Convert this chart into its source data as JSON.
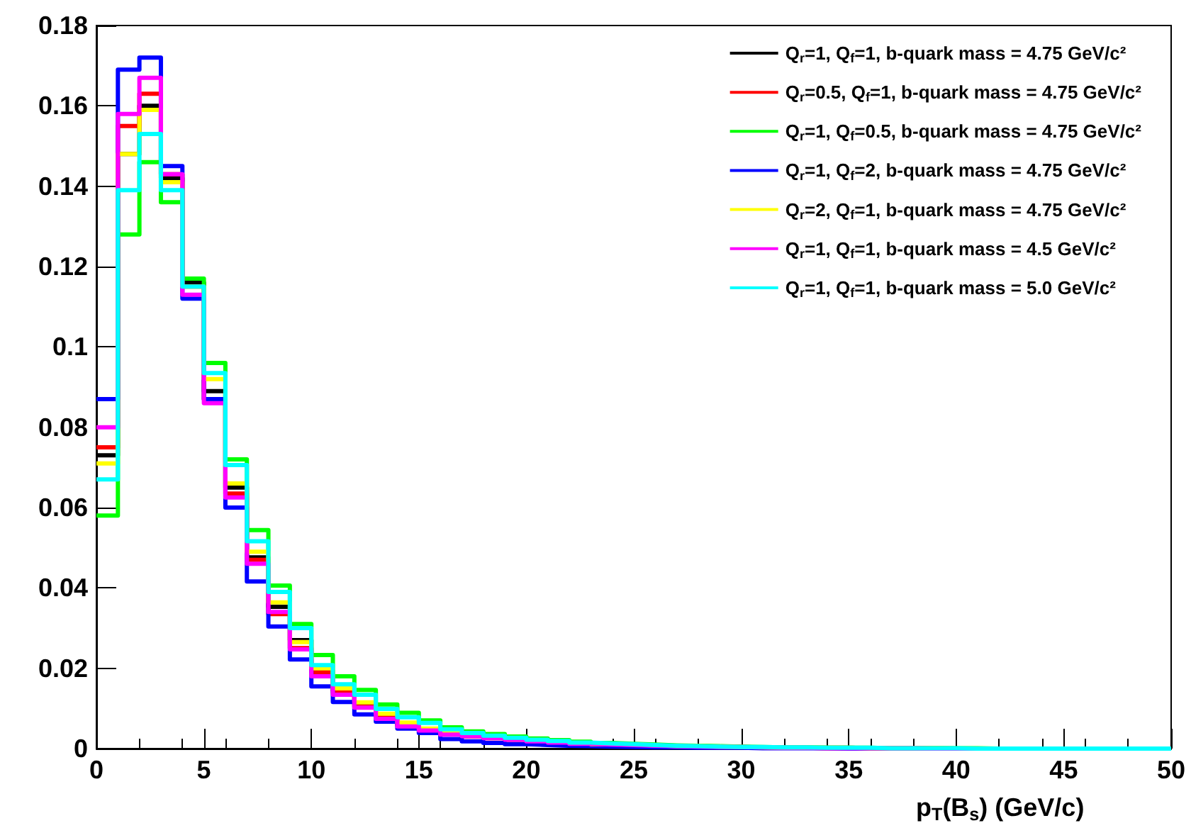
{
  "chart_data": {
    "type": "histogram",
    "xlabel": "p$_{T}$(B$_{s}$) (GeV/c)",
    "bins": [
      0,
      1,
      2,
      3,
      4,
      5,
      6,
      7,
      8,
      9,
      10,
      11,
      12,
      13,
      14,
      15,
      16,
      17,
      18,
      19,
      20,
      21,
      22,
      23,
      24,
      25,
      26,
      27,
      28,
      29,
      30,
      31,
      32,
      33,
      34,
      35,
      36,
      37,
      38,
      39,
      40,
      41,
      42,
      43,
      44,
      45,
      46,
      47,
      48,
      49,
      50
    ],
    "xlim": [
      0,
      50
    ],
    "xticks": [
      0,
      5,
      10,
      15,
      20,
      25,
      30,
      35,
      40,
      45,
      50
    ],
    "ylim": [
      0,
      0.18
    ],
    "yticks": [
      0,
      0.02,
      0.04,
      0.06,
      0.08,
      0.1,
      0.12,
      0.14,
      0.16,
      0.18
    ],
    "grid": false,
    "legend": "top right",
    "line_style": "solid",
    "series": [
      {
        "name": "Q$_{r}$=1, Q$_{f}$=1, b-quark mass = 4.75 GeV/c²",
        "color": "#000000",
        "values": [
          0.073,
          0.148,
          0.16,
          0.142,
          0.116,
          0.089,
          0.065,
          0.0476,
          0.0353,
          0.027,
          0.0194,
          0.0145,
          0.0112,
          0.0085,
          0.0062,
          0.0048,
          0.0038,
          0.0034,
          0.0029,
          0.0024,
          0.002,
          0.0017,
          0.0014,
          0.0011,
          0.001,
          0.0008,
          0.0006,
          0.0006,
          0.0005,
          0.0004,
          0.0003,
          0.0002,
          0.0002,
          0.0002,
          0.0002,
          0.0001,
          0.0001,
          0.0001,
          0.0001,
          0,
          0,
          0,
          0,
          0,
          0,
          0,
          0,
          0,
          0,
          0
        ]
      },
      {
        "name": "Q$_{r}$=0.5, Q$_{f}$=1, b-quark mass = 4.75 GeV/c²",
        "color": "#ff0000",
        "values": [
          0.075,
          0.155,
          0.163,
          0.143,
          0.115,
          0.087,
          0.0635,
          0.047,
          0.0335,
          0.025,
          0.019,
          0.014,
          0.0105,
          0.008,
          0.0058,
          0.0046,
          0.0036,
          0.0031,
          0.0026,
          0.0022,
          0.0018,
          0.0015,
          0.0012,
          0.001,
          0.0009,
          0.0007,
          0.0006,
          0.0005,
          0.0004,
          0.0004,
          0.0003,
          0.0002,
          0.0002,
          0.0001,
          0.0001,
          0.0001,
          0.0001,
          0.0001,
          0,
          0,
          0,
          0,
          0,
          0,
          0,
          0,
          0,
          0,
          0,
          0
        ]
      },
      {
        "name": "Q$_{r}$=1, Q$_{f}$=0.5, b-quark mass = 4.75 GeV/c²",
        "color": "#00ff00",
        "values": [
          0.058,
          0.128,
          0.146,
          0.136,
          0.117,
          0.096,
          0.072,
          0.0544,
          0.0406,
          0.031,
          0.0233,
          0.018,
          0.0146,
          0.011,
          0.0089,
          0.007,
          0.0053,
          0.0043,
          0.0036,
          0.003,
          0.0025,
          0.0021,
          0.0017,
          0.0014,
          0.0012,
          0.001,
          0.0008,
          0.0007,
          0.0006,
          0.0005,
          0.0004,
          0.0003,
          0.0003,
          0.0002,
          0.0002,
          0.0002,
          0.0001,
          0.0001,
          0.0001,
          0.0001,
          0.0001,
          0,
          0,
          0,
          0,
          0,
          0,
          0,
          0,
          0
        ]
      },
      {
        "name": "Q$_{r}$=1, Q$_{f}$=2, b-quark mass = 4.75 GeV/c²",
        "color": "#0000ff",
        "values": [
          0.087,
          0.169,
          0.172,
          0.145,
          0.112,
          0.087,
          0.06,
          0.0416,
          0.0304,
          0.0222,
          0.0155,
          0.0116,
          0.0085,
          0.0067,
          0.005,
          0.0039,
          0.0024,
          0.0018,
          0.0014,
          0.0011,
          0.0009,
          0.0007,
          0.0006,
          0.0005,
          0.0004,
          0.0003,
          0.0003,
          0.0002,
          0.0002,
          0.0002,
          0.0001,
          0.0001,
          0.0001,
          0.0001,
          0,
          0,
          0,
          0,
          0,
          0,
          0,
          0,
          0,
          0,
          0,
          0,
          0,
          0,
          0,
          0
        ]
      },
      {
        "name": "Q$_{r}$=2, Q$_{f}$=1, b-quark mass = 4.75 GeV/c²",
        "color": "#ffff00",
        "values": [
          0.071,
          0.148,
          0.159,
          0.141,
          0.115,
          0.092,
          0.066,
          0.049,
          0.0364,
          0.0265,
          0.02,
          0.015,
          0.0115,
          0.0087,
          0.0065,
          0.005,
          0.004,
          0.0034,
          0.0029,
          0.0024,
          0.002,
          0.0017,
          0.0014,
          0.0011,
          0.001,
          0.0008,
          0.0006,
          0.0006,
          0.0005,
          0.0004,
          0.0003,
          0.0002,
          0.0002,
          0.0002,
          0.0002,
          0.0001,
          0.0001,
          0.0001,
          0.0001,
          0,
          0,
          0,
          0,
          0,
          0,
          0,
          0,
          0,
          0,
          0
        ]
      },
      {
        "name": "Q$_{r}$=1, Q$_{f}$=1, b-quark mass = 4.5 GeV/c²",
        "color": "#ff00ff",
        "values": [
          0.08,
          0.158,
          0.167,
          0.143,
          0.113,
          0.086,
          0.0625,
          0.046,
          0.034,
          0.0247,
          0.018,
          0.0134,
          0.0102,
          0.0074,
          0.0055,
          0.0045,
          0.0035,
          0.0031,
          0.0026,
          0.0022,
          0.0018,
          0.0015,
          0.0012,
          0.001,
          0.0009,
          0.0007,
          0.0006,
          0.0005,
          0.0004,
          0.0004,
          0.0003,
          0.0002,
          0.0002,
          0.0001,
          0.0001,
          0.0001,
          0.0001,
          0.0001,
          0,
          0,
          0,
          0,
          0,
          0,
          0,
          0,
          0,
          0,
          0,
          0
        ]
      },
      {
        "name": "Q$_{r}$=1, Q$_{f}$=1, b-quark mass = 5.0 GeV/c²",
        "color": "#00ffff",
        "values": [
          0.067,
          0.139,
          0.153,
          0.139,
          0.115,
          0.0935,
          0.0706,
          0.0516,
          0.039,
          0.03,
          0.0208,
          0.016,
          0.0134,
          0.0099,
          0.0078,
          0.0064,
          0.0048,
          0.0039,
          0.0032,
          0.0027,
          0.0022,
          0.0019,
          0.0015,
          0.0013,
          0.0011,
          0.0009,
          0.0007,
          0.0006,
          0.0005,
          0.0004,
          0.0004,
          0.0003,
          0.0003,
          0.0002,
          0.0002,
          0.0002,
          0.0001,
          0.0001,
          0.0001,
          0.0001,
          0,
          0,
          0,
          0,
          0,
          0,
          0,
          0,
          0,
          0
        ]
      }
    ]
  }
}
